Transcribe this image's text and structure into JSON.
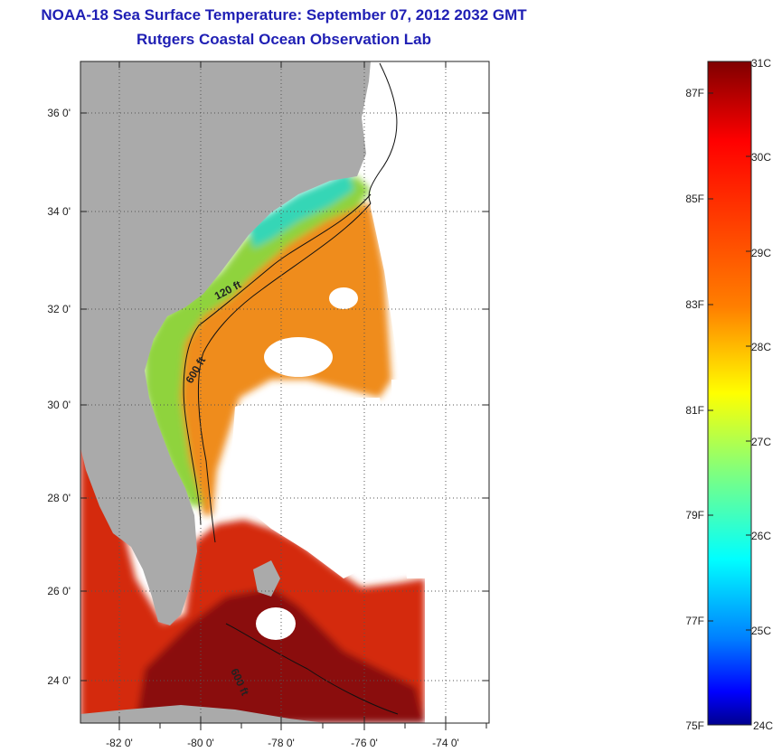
{
  "title": "NOAA-18 Sea Surface Temperature:  September 07, 2012 2032 GMT",
  "subtitle": "Rutgers Coastal Ocean Observation Lab",
  "map": {
    "lat_ticks": [
      "36 0'",
      "34 0'",
      "32 0'",
      "30 0'",
      "28 0'",
      "26 0'",
      "24 0'"
    ],
    "lon_ticks": [
      "-82 0'",
      "-80 0'",
      "-78 0'",
      "-76 0'",
      "-74 0'"
    ],
    "lat_range": [
      23.0,
      37.1
    ],
    "lon_range": [
      -83.0,
      -73.0
    ],
    "contour_labels": [
      "120 ft",
      "600 ft",
      "600 ft"
    ],
    "colors": {
      "land": "#aaaaaa",
      "no_data": "#ffffff",
      "grid": "#555555"
    }
  },
  "colorbar": {
    "celsius_labels": [
      "31C",
      "30C",
      "29C",
      "28C",
      "27C",
      "26C",
      "25C",
      "24C"
    ],
    "fahrenheit_labels": [
      "87F",
      "85F",
      "83F",
      "81F",
      "79F",
      "77F",
      "75F"
    ],
    "celsius_range": [
      24,
      31
    ],
    "colors": [
      "#7f0000",
      "#ff0000",
      "#ff7f00",
      "#ffff00",
      "#7fff7f",
      "#00ffff",
      "#007fff",
      "#0000ff",
      "#00008f"
    ]
  }
}
